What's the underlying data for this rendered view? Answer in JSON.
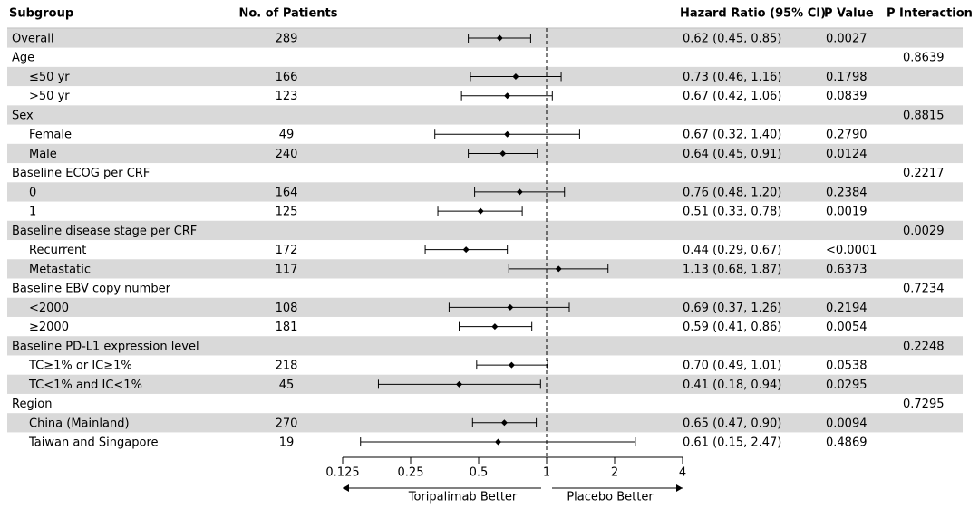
{
  "chart_data": {
    "type": "forest",
    "columns": {
      "subgroup": "Subgroup",
      "patients": "No. of Patients",
      "hr": "Hazard Ratio (95% CI)",
      "p": "P Value",
      "p_interaction": "P Interaction"
    },
    "overall": {
      "label": "Overall",
      "patients": 289,
      "hr": 0.62,
      "ci_low": 0.45,
      "ci_high": 0.85,
      "hr_label": "0.62 (0.45, 0.85)",
      "p": "0.0027"
    },
    "groups": [
      {
        "label": "Age",
        "p_interaction": "0.8639",
        "rows": [
          {
            "label": "≤50 yr",
            "patients": 166,
            "hr": 0.73,
            "ci_low": 0.46,
            "ci_high": 1.16,
            "hr_label": "0.73 (0.46, 1.16)",
            "p": "0.1798"
          },
          {
            "label": ">50 yr",
            "patients": 123,
            "hr": 0.67,
            "ci_low": 0.42,
            "ci_high": 1.06,
            "hr_label": "0.67 (0.42, 1.06)",
            "p": "0.0839"
          }
        ]
      },
      {
        "label": "Sex",
        "p_interaction": "0.8815",
        "rows": [
          {
            "label": "Female",
            "patients": 49,
            "hr": 0.67,
            "ci_low": 0.32,
            "ci_high": 1.4,
            "hr_label": "0.67 (0.32, 1.40)",
            "p": "0.2790"
          },
          {
            "label": "Male",
            "patients": 240,
            "hr": 0.64,
            "ci_low": 0.45,
            "ci_high": 0.91,
            "hr_label": "0.64 (0.45, 0.91)",
            "p": "0.0124"
          }
        ]
      },
      {
        "label": "Baseline ECOG per CRF",
        "p_interaction": "0.2217",
        "rows": [
          {
            "label": "0",
            "patients": 164,
            "hr": 0.76,
            "ci_low": 0.48,
            "ci_high": 1.2,
            "hr_label": "0.76 (0.48, 1.20)",
            "p": "0.2384"
          },
          {
            "label": "1",
            "patients": 125,
            "hr": 0.51,
            "ci_low": 0.33,
            "ci_high": 0.78,
            "hr_label": "0.51 (0.33, 0.78)",
            "p": "0.0019"
          }
        ]
      },
      {
        "label": "Baseline disease stage per CRF",
        "p_interaction": "0.0029",
        "rows": [
          {
            "label": "Recurrent",
            "patients": 172,
            "hr": 0.44,
            "ci_low": 0.29,
            "ci_high": 0.67,
            "hr_label": "0.44 (0.29, 0.67)",
            "p": "<0.0001"
          },
          {
            "label": "Metastatic",
            "patients": 117,
            "hr": 1.13,
            "ci_low": 0.68,
            "ci_high": 1.87,
            "hr_label": "1.13 (0.68, 1.87)",
            "p": "0.6373"
          }
        ]
      },
      {
        "label": "Baseline EBV copy number",
        "p_interaction": "0.7234",
        "rows": [
          {
            "label": "<2000",
            "patients": 108,
            "hr": 0.69,
            "ci_low": 0.37,
            "ci_high": 1.26,
            "hr_label": "0.69 (0.37, 1.26)",
            "p": "0.2194"
          },
          {
            "label": "≥2000",
            "patients": 181,
            "hr": 0.59,
            "ci_low": 0.41,
            "ci_high": 0.86,
            "hr_label": "0.59 (0.41, 0.86)",
            "p": "0.0054"
          }
        ]
      },
      {
        "label": "Baseline PD-L1 expression level",
        "p_interaction": "0.2248",
        "rows": [
          {
            "label": "TC≥1% or IC≥1%",
            "patients": 218,
            "hr": 0.7,
            "ci_low": 0.49,
            "ci_high": 1.01,
            "hr_label": "0.70 (0.49, 1.01)",
            "p": "0.0538"
          },
          {
            "label": "TC<1% and IC<1%",
            "patients": 45,
            "hr": 0.41,
            "ci_low": 0.18,
            "ci_high": 0.94,
            "hr_label": "0.41 (0.18, 0.94)",
            "p": "0.0295"
          }
        ]
      },
      {
        "label": "Region",
        "p_interaction": "0.7295",
        "rows": [
          {
            "label": "China (Mainland)",
            "patients": 270,
            "hr": 0.65,
            "ci_low": 0.47,
            "ci_high": 0.9,
            "hr_label": "0.65 (0.47, 0.90)",
            "p": "0.0094"
          },
          {
            "label": "Taiwan and Singapore",
            "patients": 19,
            "hr": 0.61,
            "ci_low": 0.15,
            "ci_high": 2.47,
            "hr_label": "0.61 (0.15, 2.47)",
            "p": "0.4869"
          }
        ]
      }
    ],
    "xlim": [
      0.125,
      4
    ],
    "xticks": [
      0.125,
      0.25,
      0.5,
      1,
      2,
      4
    ],
    "log_scale": true,
    "reference_line": 1,
    "left_label": "Toripalimab Better",
    "right_label": "Placebo Better",
    "color": "#000000"
  }
}
